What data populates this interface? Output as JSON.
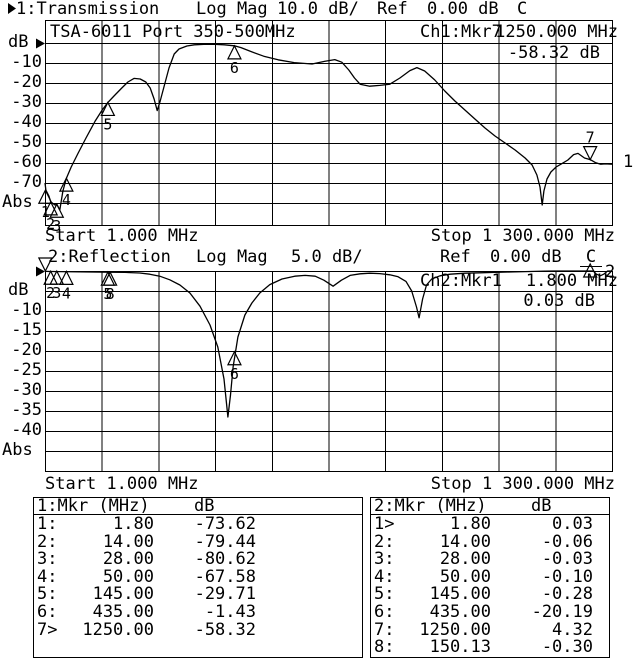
{
  "chart1": {
    "title": {
      "channel": "1:Transmission",
      "format": "Log Mag",
      "scale": "10.0 dB/",
      "ref_label": "Ref",
      "ref_value": "0.00 dB",
      "status": "C"
    },
    "header_note": "TSA-6011 Port 350-500MHz",
    "readout": {
      "channel": "Ch1:Mkr7",
      "frequency": "1250.000 MHz",
      "value": "-58.32 dB"
    },
    "y_ticks": [
      "dB",
      "-10",
      "-20",
      "-30",
      "-40",
      "-50",
      "-60",
      "-70",
      "Abs"
    ],
    "x_start": "Start 1.000 MHz",
    "x_stop": "Stop 1 300.000 MHz",
    "trace_number": "1"
  },
  "chart2": {
    "title": {
      "channel": "2:Reflection",
      "format": "Log Mag",
      "scale": "5.0 dB/",
      "ref_label": "Ref",
      "ref_value": "0.00 dB",
      "status": "C"
    },
    "readout": {
      "channel": "Ch2:Mkr1",
      "frequency": "1.800 MHz",
      "value": "0.03 dB"
    },
    "y_ticks": [
      "dB",
      "-10",
      "-15",
      "-20",
      "-25",
      "-30",
      "-35",
      "-40",
      "Abs"
    ],
    "x_start": "Start 1.000 MHz",
    "x_stop": "Stop 1 300.000 MHz",
    "trace_number": "2"
  },
  "chart_data": [
    {
      "type": "line",
      "name": "Transmission",
      "channel": 1,
      "x_unit": "MHz",
      "x_range": [
        1,
        1300
      ],
      "y_unit": "dB",
      "db_per_div": 10,
      "ref_db": 0,
      "y_grid_min": -80,
      "points": [
        [
          1,
          -70
        ],
        [
          3,
          -73.6
        ],
        [
          10,
          -76.5
        ],
        [
          14,
          -79.4
        ],
        [
          24,
          -81
        ],
        [
          28,
          -80.6
        ],
        [
          35,
          -83.5
        ],
        [
          42,
          -74
        ],
        [
          50,
          -67.6
        ],
        [
          61,
          -62
        ],
        [
          77,
          -55
        ],
        [
          95,
          -47.5
        ],
        [
          116,
          -39
        ],
        [
          132,
          -33.5
        ],
        [
          145,
          -29.7
        ],
        [
          159,
          -26.5
        ],
        [
          177,
          -22.5
        ],
        [
          191,
          -19.5
        ],
        [
          205,
          -17.7
        ],
        [
          219,
          -18
        ],
        [
          232,
          -19.5
        ],
        [
          242,
          -22.5
        ],
        [
          251,
          -28
        ],
        [
          258,
          -33.8
        ],
        [
          265,
          -29
        ],
        [
          274,
          -21.5
        ],
        [
          285,
          -12.5
        ],
        [
          297,
          -5.5
        ],
        [
          308,
          -3
        ],
        [
          326,
          -1.5
        ],
        [
          343,
          -0.9
        ],
        [
          365,
          -0.7
        ],
        [
          391,
          -0.7
        ],
        [
          412,
          -0.9
        ],
        [
          435,
          -1.4
        ],
        [
          450,
          -2.3
        ],
        [
          472,
          -4.2
        ],
        [
          502,
          -6.6
        ],
        [
          535,
          -8.4
        ],
        [
          572,
          -9.8
        ],
        [
          613,
          -10.5
        ],
        [
          641,
          -9.2
        ],
        [
          665,
          -8.3
        ],
        [
          681,
          -9.6
        ],
        [
          697,
          -13.5
        ],
        [
          710,
          -17.5
        ],
        [
          723,
          -20.6
        ],
        [
          745,
          -21.6
        ],
        [
          768,
          -21.2
        ],
        [
          791,
          -20.6
        ],
        [
          814,
          -17.5
        ],
        [
          837,
          -13.8
        ],
        [
          853,
          -12.3
        ],
        [
          871,
          -14
        ],
        [
          894,
          -18.5
        ],
        [
          917,
          -24
        ],
        [
          940,
          -29
        ],
        [
          963,
          -33.5
        ],
        [
          986,
          -38
        ],
        [
          1009,
          -42.5
        ],
        [
          1032,
          -46.5
        ],
        [
          1055,
          -50
        ],
        [
          1078,
          -53.5
        ],
        [
          1101,
          -57.5
        ],
        [
          1117,
          -61
        ],
        [
          1128,
          -66
        ],
        [
          1135,
          -72
        ],
        [
          1140,
          -81
        ],
        [
          1144,
          -74
        ],
        [
          1151,
          -68
        ],
        [
          1160,
          -64.5
        ],
        [
          1172,
          -62
        ],
        [
          1186,
          -60.2
        ],
        [
          1199,
          -58.5
        ],
        [
          1212,
          -55.8
        ],
        [
          1222,
          -55.2
        ],
        [
          1237,
          -57.5
        ],
        [
          1250,
          -58.3
        ],
        [
          1262,
          -59.8
        ],
        [
          1274,
          -60.6
        ],
        [
          1285,
          -60.4
        ],
        [
          1300,
          -60.6
        ]
      ],
      "markers": [
        {
          "n": "1",
          "mhz": 1.8,
          "db": -73.62
        },
        {
          "n": "2",
          "mhz": 14,
          "db": -79.44
        },
        {
          "n": "3",
          "mhz": 28,
          "db": -80.62
        },
        {
          "n": "4",
          "mhz": 50,
          "db": -67.58
        },
        {
          "n": "5",
          "mhz": 145,
          "db": -29.71
        },
        {
          "n": "6",
          "mhz": 435,
          "db": -1.43
        },
        {
          "n": "7",
          "mhz": 1250,
          "db": -58.32,
          "active": true
        }
      ]
    },
    {
      "type": "line",
      "name": "Reflection",
      "channel": 2,
      "x_unit": "MHz",
      "x_range": [
        1,
        1300
      ],
      "y_unit": "dB",
      "db_per_div": 5,
      "ref_db": 0,
      "y_grid_min": -40,
      "points": [
        [
          1,
          -0.1
        ],
        [
          35,
          -0.15
        ],
        [
          80,
          -0.2
        ],
        [
          127,
          -0.28
        ],
        [
          150,
          -0.3
        ],
        [
          184,
          -0.35
        ],
        [
          218,
          -0.5
        ],
        [
          241,
          -0.8
        ],
        [
          264,
          -1.3
        ],
        [
          287,
          -2.2
        ],
        [
          310,
          -3.5
        ],
        [
          333,
          -5.5
        ],
        [
          356,
          -8.8
        ],
        [
          379,
          -13.5
        ],
        [
          397,
          -19
        ],
        [
          411,
          -27
        ],
        [
          420,
          -36.5
        ],
        [
          426,
          -31
        ],
        [
          432,
          -24
        ],
        [
          443,
          -16.5
        ],
        [
          459,
          -11
        ],
        [
          475,
          -8
        ],
        [
          493,
          -5.5
        ],
        [
          516,
          -3.4
        ],
        [
          544,
          -2
        ],
        [
          573,
          -1.3
        ],
        [
          597,
          -1.1
        ],
        [
          620,
          -1.3
        ],
        [
          640,
          -2.3
        ],
        [
          661,
          -3.8
        ],
        [
          680,
          -2.3
        ],
        [
          700,
          -1.1
        ],
        [
          723,
          -0.7
        ],
        [
          745,
          -0.55
        ],
        [
          768,
          -0.65
        ],
        [
          791,
          -0.95
        ],
        [
          809,
          -1.4
        ],
        [
          828,
          -2.6
        ],
        [
          841,
          -5
        ],
        [
          852,
          -9
        ],
        [
          858,
          -11.7
        ],
        [
          866,
          -7
        ],
        [
          875,
          -3.5
        ],
        [
          887,
          -2
        ],
        [
          906,
          -1.2
        ],
        [
          929,
          -0.8
        ],
        [
          963,
          -0.55
        ],
        [
          997,
          -0.45
        ],
        [
          1032,
          -0.35
        ],
        [
          1066,
          -0.25
        ],
        [
          1101,
          -0.15
        ],
        [
          1123,
          -0.1
        ],
        [
          1146,
          -0.05
        ],
        [
          1169,
          0.2
        ],
        [
          1215,
          0.3
        ],
        [
          1250,
          0.4
        ],
        [
          1258,
          0.1
        ],
        [
          1263,
          -0.7
        ],
        [
          1273,
          -1.2
        ],
        [
          1281,
          -0.8
        ],
        [
          1290,
          0.2
        ],
        [
          1300,
          0.3
        ]
      ],
      "markers": [
        {
          "n": "1",
          "mhz": 1.8,
          "db": 0.03,
          "active": true,
          "no_label": true
        },
        {
          "n": "2",
          "mhz": 14,
          "db": -0.06
        },
        {
          "n": "3",
          "mhz": 28,
          "db": -0.03
        },
        {
          "n": "4",
          "mhz": 50,
          "db": -0.1
        },
        {
          "n": "5",
          "mhz": 145,
          "db": -0.28
        },
        {
          "n": "8",
          "mhz": 150.13,
          "db": -0.3
        },
        {
          "n": "6",
          "mhz": 435,
          "db": -20.19
        },
        {
          "n": "7",
          "mhz": 1250,
          "db": 4.32,
          "no_label": true
        }
      ]
    }
  ],
  "marker_table": {
    "left": {
      "header": "1:Mkr (MHz)",
      "unit": "dB",
      "rows": [
        [
          "1:",
          "1.80",
          "-73.62"
        ],
        [
          "2:",
          "14.00",
          "-79.44"
        ],
        [
          "3:",
          "28.00",
          "-80.62"
        ],
        [
          "4:",
          "50.00",
          "-67.58"
        ],
        [
          "5:",
          "145.00",
          "-29.71"
        ],
        [
          "6:",
          "435.00",
          "-1.43"
        ],
        [
          "7>",
          "1250.00",
          "-58.32"
        ]
      ]
    },
    "right": {
      "header": "2:Mkr (MHz)",
      "unit": "dB",
      "rows": [
        [
          "1>",
          "1.80",
          "0.03"
        ],
        [
          "2:",
          "14.00",
          "-0.06"
        ],
        [
          "3:",
          "28.00",
          "-0.03"
        ],
        [
          "4:",
          "50.00",
          "-0.10"
        ],
        [
          "5:",
          "145.00",
          "-0.28"
        ],
        [
          "6:",
          "435.00",
          "-20.19"
        ],
        [
          "7:",
          "1250.00",
          "4.32"
        ],
        [
          "8:",
          "150.13",
          "-0.30"
        ]
      ]
    }
  }
}
